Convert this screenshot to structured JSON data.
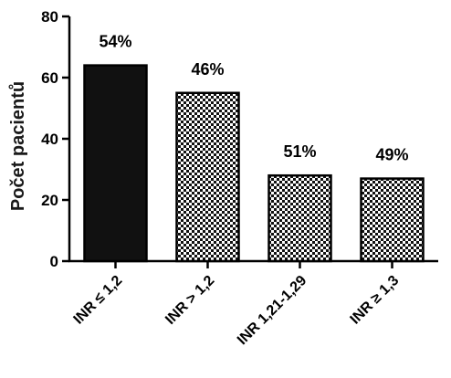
{
  "chart_data": {
    "type": "bar",
    "categories": [
      "INR ≤ 1,2",
      "INR > 1,2",
      "INR 1,21-1,29",
      "INR ≥ 1,3"
    ],
    "values": [
      64,
      55,
      28,
      27
    ],
    "bar_labels": [
      "54%",
      "46%",
      "51%",
      "49%"
    ],
    "fills": [
      "solid",
      "checker",
      "checker",
      "checker"
    ],
    "ylabel": "Počet pacientů",
    "xlabel": "",
    "ylim": [
      0,
      80
    ],
    "yticks": [
      "0",
      "20",
      "40",
      "60",
      "80"
    ],
    "grid": false,
    "legend": "none",
    "colors": {
      "bar_solid": "#111111",
      "checker_dark": "#111111",
      "checker_light": "#ffffff",
      "axis": "#000000"
    }
  }
}
